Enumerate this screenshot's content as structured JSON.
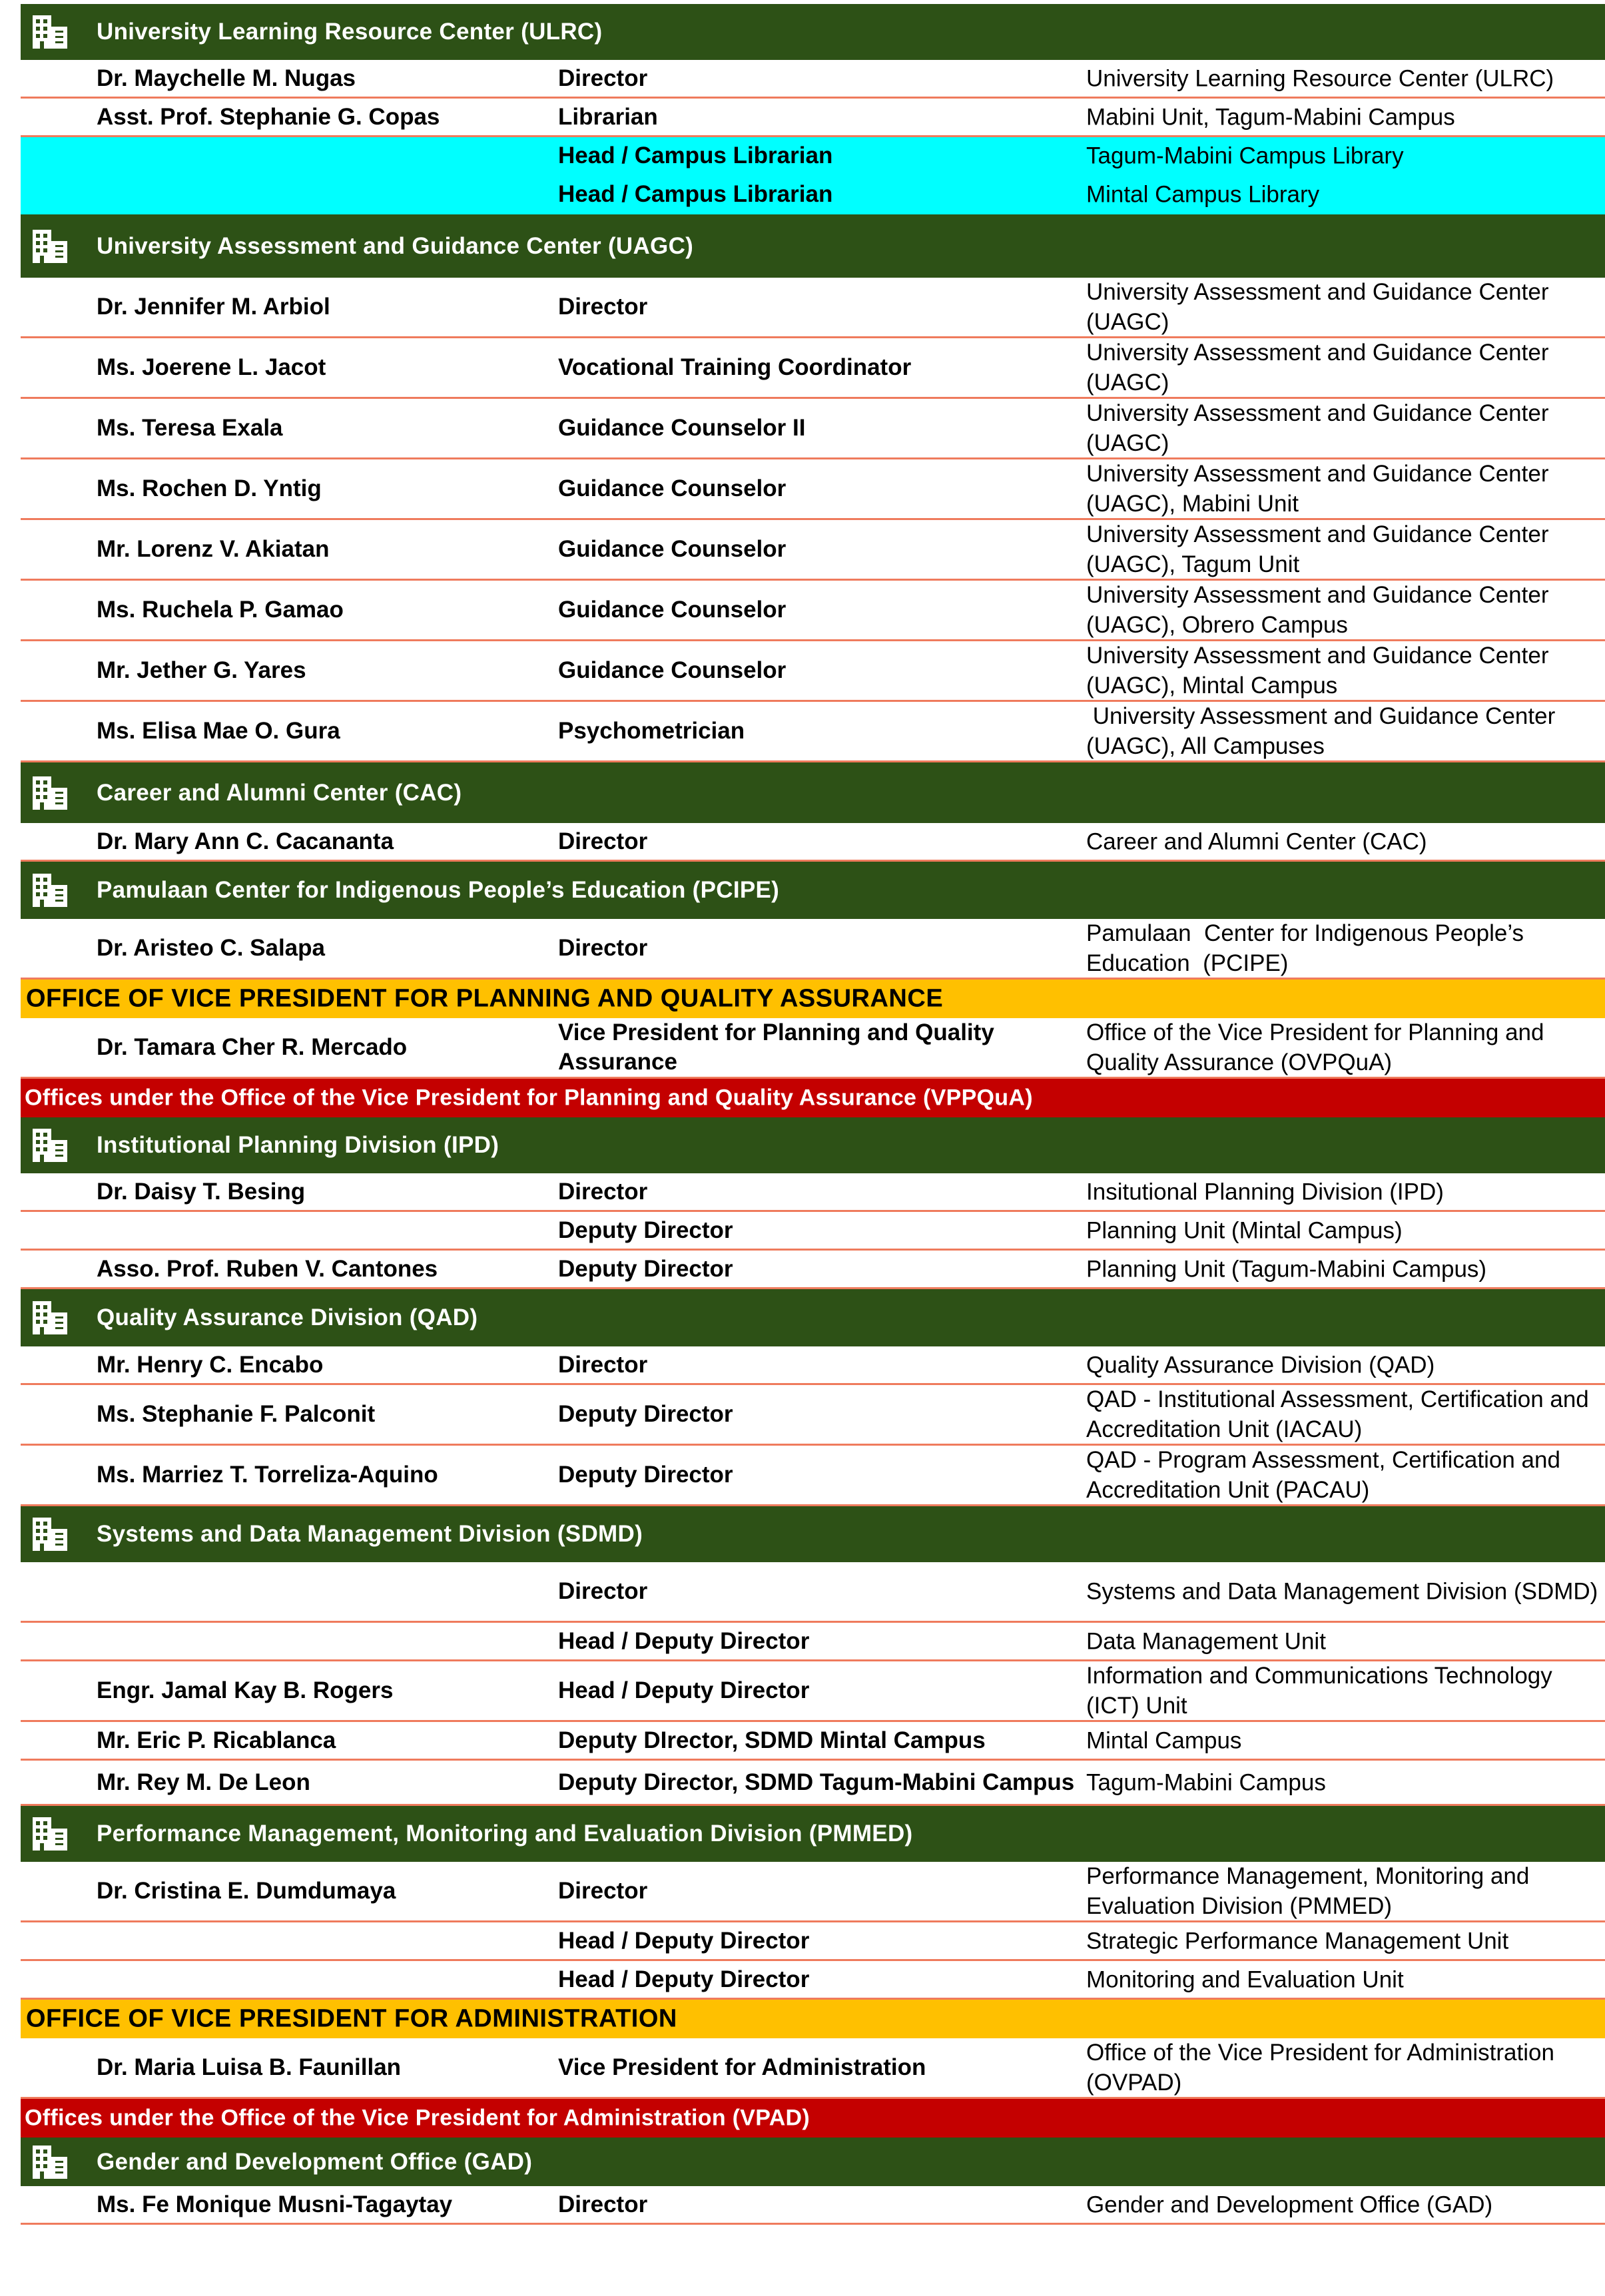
{
  "colors": {
    "section_bg": "#2d5116",
    "office_bg": "#ffc000",
    "subheader_bg": "#c40000",
    "highlight_bg": "#00ffff",
    "row_border": "#ef7b5d"
  },
  "icon": "building-icon",
  "rows": [
    {
      "type": "section",
      "title": "University Learning Resource Center (ULRC)"
    },
    {
      "type": "person",
      "name": "Dr. Maychelle M. Nugas",
      "position": "Director",
      "unit": "University Learning Resource Center (ULRC)"
    },
    {
      "type": "person",
      "name": "Asst. Prof. Stephanie G. Copas",
      "position": "Librarian",
      "unit": "Mabini Unit, Tagum-Mabini Campus"
    },
    {
      "type": "person",
      "highlight": true,
      "name": "",
      "position": "Head / Campus Librarian",
      "unit": "Tagum-Mabini Campus Library"
    },
    {
      "type": "person",
      "highlight": true,
      "name": "",
      "position": "Head / Campus Librarian",
      "unit": "Mintal Campus Library"
    },
    {
      "type": "section",
      "title": "University Assessment and Guidance Center (UAGC)"
    },
    {
      "type": "person",
      "name": "Dr. Jennifer M. Arbiol",
      "position": "Director",
      "unit": "University Assessment and Guidance Center (UAGC)"
    },
    {
      "type": "person",
      "name": "Ms. Joerene L. Jacot",
      "position": "Vocational Training Coordinator",
      "unit": "University Assessment and Guidance Center (UAGC)"
    },
    {
      "type": "person",
      "name": "Ms. Teresa Exala",
      "position": "Guidance Counselor II",
      "unit": "University Assessment and Guidance Center (UAGC)"
    },
    {
      "type": "person",
      "name": "Ms. Rochen D. Yntig",
      "position": "Guidance Counselor",
      "unit": "University Assessment and Guidance Center (UAGC), Mabini Unit"
    },
    {
      "type": "person",
      "name": "Mr. Lorenz V. Akiatan",
      "position": "Guidance Counselor",
      "unit": "University Assessment and Guidance Center (UAGC), Tagum Unit"
    },
    {
      "type": "person",
      "name": "Ms. Ruchela P. Gamao",
      "position": "Guidance Counselor",
      "unit": "University Assessment and Guidance Center (UAGC), Obrero Campus"
    },
    {
      "type": "person",
      "name": "Mr. Jether G. Yares",
      "position": "Guidance Counselor",
      "unit": "University Assessment and Guidance Center (UAGC), Mintal Campus"
    },
    {
      "type": "person",
      "name": "Ms. Elisa Mae O. Gura",
      "position": "Psychometrician",
      "unit": " University Assessment and Guidance Center (UAGC), All Campuses"
    },
    {
      "type": "section",
      "title": "Career and Alumni Center (CAC)"
    },
    {
      "type": "person",
      "name": "Dr. Mary Ann C. Cacananta",
      "position": "Director",
      "unit": "Career and Alumni Center (CAC)"
    },
    {
      "type": "section",
      "title": "Pamulaan  Center for Indigenous People’s Education (PCIPE)"
    },
    {
      "type": "person",
      "name": "Dr. Aristeo C. Salapa",
      "position": "Director",
      "unit": "Pamulaan  Center for Indigenous People’s Education  (PCIPE)"
    },
    {
      "type": "office",
      "title": "OFFICE OF VICE PRESIDENT FOR PLANNING AND QUALITY ASSURANCE"
    },
    {
      "type": "person",
      "name": "Dr. Tamara Cher R. Mercado",
      "position": "Vice President for Planning and Quality Assurance",
      "unit": "Office of the Vice President for Planning and Quality Assurance (OVPQuA)"
    },
    {
      "type": "sub",
      "title": "Offices under the Office of the Vice President for Planning and Quality Assurance (VPPQuA)"
    },
    {
      "type": "section",
      "title": "Institutional Planning Division (IPD)"
    },
    {
      "type": "person",
      "name": "Dr. Daisy T. Besing",
      "position": "Director",
      "unit": "Insitutional Planning Division (IPD)"
    },
    {
      "type": "person",
      "name": "",
      "position": "Deputy Director",
      "unit": "Planning Unit (Mintal Campus)"
    },
    {
      "type": "person",
      "name": "Asso. Prof. Ruben V. Cantones",
      "position": "Deputy Director",
      "unit": "Planning Unit (Tagum-Mabini Campus)"
    },
    {
      "type": "section",
      "title": "Quality Assurance Division (QAD)"
    },
    {
      "type": "person",
      "name": " Mr. Henry C. Encabo",
      "position": "Director",
      "unit": "Quality Assurance Division (QAD)"
    },
    {
      "type": "person",
      "name": "Ms. Stephanie F. Palconit",
      "position": "Deputy Director",
      "unit": "QAD - Institutional Assessment, Certification and Accreditation Unit (IACAU)"
    },
    {
      "type": "person",
      "name": "Ms. Marriez T. Torreliza-Aquino",
      "position": "Deputy Director",
      "unit": "QAD - Program Assessment, Certification and Accreditation Unit (PACAU)"
    },
    {
      "type": "section",
      "title": "Systems and Data Management Division (SDMD)"
    },
    {
      "type": "person",
      "name": "",
      "position": "Director",
      "unit": "Systems and Data Management Division (SDMD)"
    },
    {
      "type": "person",
      "name": "",
      "position": "Head / Deputy Director",
      "unit": "Data Management Unit"
    },
    {
      "type": "person",
      "name": "Engr. Jamal Kay B. Rogers",
      "position": "Head / Deputy Director",
      "unit": "Information and Communications Technology (ICT) Unit"
    },
    {
      "type": "person",
      "name": "Mr. Eric P. Ricablanca",
      "position": "Deputy DIrector, SDMD Mintal Campus",
      "unit": "Mintal Campus"
    },
    {
      "type": "person",
      "name": "Mr. Rey M. De Leon",
      "position": "Deputy Director, SDMD Tagum-Mabini Campus",
      "unit": "Tagum-Mabini Campus"
    },
    {
      "type": "section",
      "title": "Performance Management, Monitoring and Evaluation Division (PMMED)"
    },
    {
      "type": "person",
      "name": "Dr. Cristina E. Dumdumaya",
      "position": "Director",
      "unit": "Performance Management, Monitoring and Evaluation Division (PMMED)"
    },
    {
      "type": "person",
      "name": "",
      "position": "Head / Deputy Director",
      "unit": "Strategic Performance Management Unit"
    },
    {
      "type": "person",
      "name": "",
      "position": "Head / Deputy Director",
      "unit": "Monitoring and Evaluation Unit"
    },
    {
      "type": "office",
      "title": "OFFICE OF VICE PRESIDENT FOR ADMINISTRATION"
    },
    {
      "type": "person",
      "name": "Dr. Maria Luisa B. Faunillan",
      "position": "Vice President for Administration",
      "unit": "Office of the Vice President for Administration (OVPAD)"
    },
    {
      "type": "sub",
      "title": "Offices under the Office of the Vice President for Administration (VPAD)"
    },
    {
      "type": "section",
      "title": "Gender and Development Office (GAD)"
    },
    {
      "type": "person",
      "name": "Ms. Fe Monique Musni-Tagaytay",
      "position": "Director",
      "unit": "Gender and Development Office (GAD)"
    }
  ]
}
